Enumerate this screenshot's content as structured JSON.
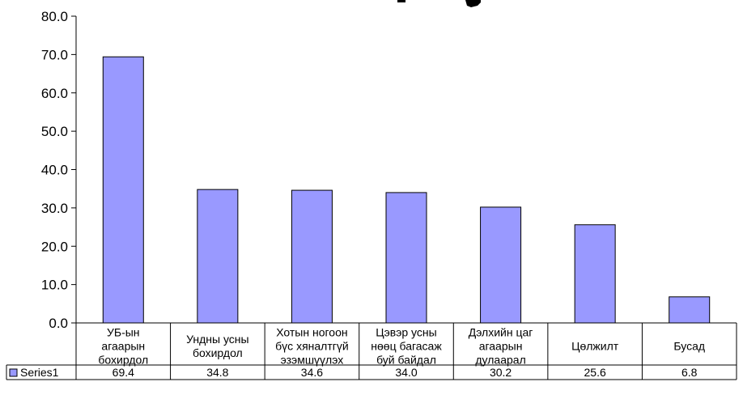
{
  "chart_data": {
    "type": "bar",
    "categories": [
      [
        "УБ-ын",
        "агаарын",
        "бохирдол"
      ],
      [
        "Ундны усны",
        "бохирдол"
      ],
      [
        "Хотын ногоон",
        "бүс хяналтгүй",
        "эзэмшүүлэх"
      ],
      [
        "Цэвэр усны",
        "нөөц багасаж",
        "буй байдал"
      ],
      [
        "Дэлхийн цаг",
        "агаарын",
        "дулаарал"
      ],
      [
        "Цөлжилт"
      ],
      [
        "Бусад"
      ]
    ],
    "series": [
      {
        "name": "Series1",
        "values": [
          69.4,
          34.8,
          34.6,
          34.0,
          30.2,
          25.6,
          6.8
        ],
        "value_labels": [
          "69.4",
          "34.8",
          "34.6",
          "34.0",
          "30.2",
          "25.6",
          "6.8"
        ],
        "color": "#9999ff"
      }
    ],
    "ylim": [
      0,
      80
    ],
    "yticks": [
      "0.0",
      "10.0",
      "20.0",
      "30.0",
      "40.0",
      "50.0",
      "60.0",
      "70.0",
      "80.0"
    ],
    "grid": false,
    "legend": "data-table",
    "data_table": true
  }
}
